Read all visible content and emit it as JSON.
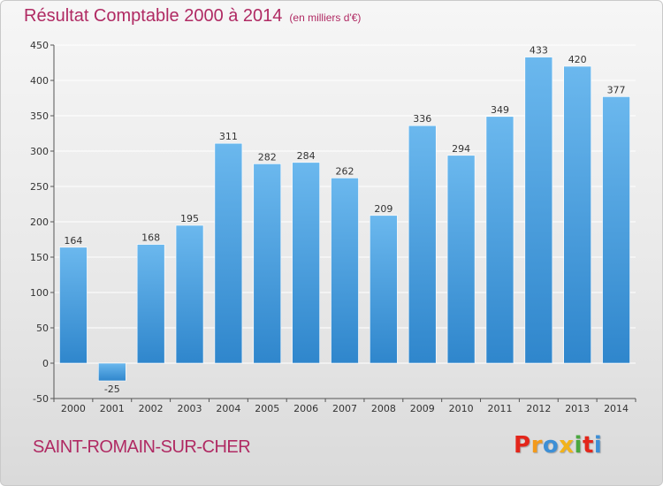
{
  "header": {
    "title": "Résultat Comptable 2000 à 2014",
    "unit": "(en milliers d'€)"
  },
  "footer": {
    "town": "SAINT-ROMAIN-SUR-CHER",
    "logo": "Proxiti"
  },
  "colors": {
    "title": "#b02a63",
    "bar_light": "#6bb8ee",
    "bar_dark": "#2f86cc",
    "logo_letters": [
      "#e3261b",
      "#f39a1c",
      "#3d8fd6",
      "#f2b31b",
      "#4aa83f",
      "#e3261b",
      "#3d8fd6"
    ]
  },
  "chart_data": {
    "type": "bar",
    "categories": [
      "2000",
      "2001",
      "2002",
      "2003",
      "2004",
      "2005",
      "2006",
      "2007",
      "2008",
      "2009",
      "2010",
      "2011",
      "2012",
      "2013",
      "2014"
    ],
    "values": [
      164,
      -25,
      168,
      195,
      311,
      282,
      284,
      262,
      209,
      336,
      294,
      349,
      433,
      420,
      377
    ],
    "yticks": [
      -50,
      0,
      50,
      100,
      150,
      200,
      250,
      300,
      350,
      400,
      450
    ],
    "ylim": [
      -50,
      450
    ],
    "grid": true,
    "title": "Résultat Comptable 2000 à 2014",
    "xlabel": "",
    "ylabel": ""
  }
}
